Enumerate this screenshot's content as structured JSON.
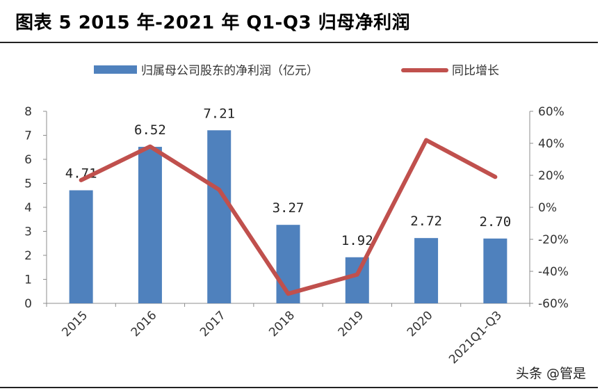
{
  "figure": {
    "title": "图表  5 2015 年-2021 年 Q1-Q3 归母净利润",
    "watermark": "头条 @管是"
  },
  "colors": {
    "bar": "#4f81bd",
    "line": "#c0504d",
    "axis": "#8c8c8c",
    "text": "#333333"
  },
  "chart_data": {
    "type": "bar",
    "title": "",
    "categories": [
      "2015",
      "2016",
      "2017",
      "2018",
      "2019",
      "2020",
      "2021Q1-Q3"
    ],
    "series": [
      {
        "name": "归属母公司股东的净利润（亿元）",
        "type": "bar",
        "axis": "left",
        "values": [
          4.71,
          6.52,
          7.21,
          3.27,
          1.92,
          2.72,
          2.7
        ],
        "labels": [
          "4.71",
          "6.52",
          "7.21",
          "3.27",
          "1.92",
          "2.72",
          "2.70"
        ]
      },
      {
        "name": "同比增长",
        "type": "line",
        "axis": "right",
        "values": [
          17,
          38,
          11,
          -54,
          -42,
          42,
          19
        ]
      }
    ],
    "y_left": {
      "range": [
        0,
        8
      ],
      "ticks": [
        "0",
        "1",
        "2",
        "3",
        "4",
        "5",
        "6",
        "7",
        "8"
      ]
    },
    "y_right": {
      "range": [
        -60,
        60
      ],
      "ticks": [
        "-60%",
        "-40%",
        "-20%",
        "0%",
        "20%",
        "40%",
        "60%"
      ]
    },
    "legend_position": "top"
  }
}
